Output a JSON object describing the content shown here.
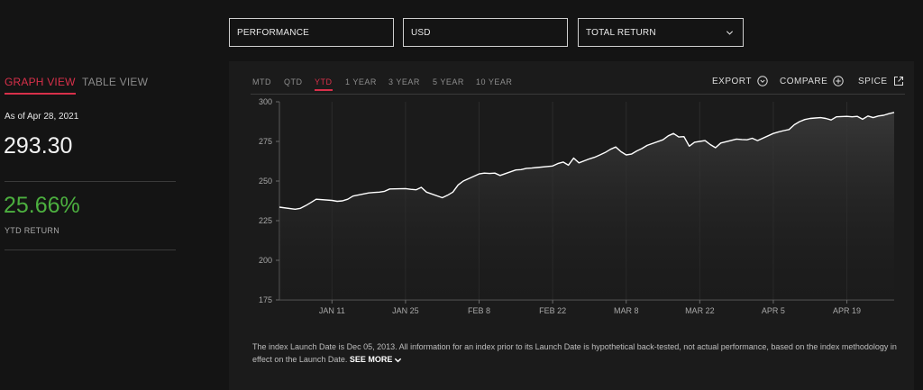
{
  "filters": {
    "performance": "PERFORMANCE",
    "currency": "USD",
    "return_type": "TOTAL RETURN",
    "return_type_icon": "chevron-down-icon"
  },
  "views": {
    "graph": "GRAPH VIEW",
    "table": "TABLE VIEW",
    "active": "graph"
  },
  "summary": {
    "as_of": "As of Apr 28, 2021",
    "value": "293.30",
    "ytd_value": "25.66%",
    "ytd_label": "YTD RETURN"
  },
  "periods": {
    "items": [
      "MTD",
      "QTD",
      "YTD",
      "1 YEAR",
      "3 YEAR",
      "5 YEAR",
      "10 YEAR"
    ],
    "active": "YTD"
  },
  "actions": {
    "export": "EXPORT",
    "compare": "COMPARE",
    "spice": "SPICE",
    "export_icon": "chevron-circle-down-icon",
    "compare_icon": "plus-circle-icon",
    "spice_icon": "external-link-icon"
  },
  "colors": {
    "accent": "#d8304a",
    "positive": "#4caf3f",
    "line": "#ffffff",
    "background": "#141414",
    "panel": "#1b1b1b"
  },
  "chart_data": {
    "type": "area",
    "ylim": [
      175,
      300
    ],
    "yticks": [
      175,
      200,
      225,
      250,
      275,
      300
    ],
    "xlim": [
      "2021-01-01",
      "2021-04-28"
    ],
    "xticks": [
      {
        "date": "2021-01-11",
        "label": "JAN 11"
      },
      {
        "date": "2021-01-25",
        "label": "JAN 25"
      },
      {
        "date": "2021-02-08",
        "label": "FEB 8"
      },
      {
        "date": "2021-02-22",
        "label": "FEB 22"
      },
      {
        "date": "2021-03-08",
        "label": "MAR 8"
      },
      {
        "date": "2021-03-22",
        "label": "MAR 22"
      },
      {
        "date": "2021-04-05",
        "label": "APR 5"
      },
      {
        "date": "2021-04-19",
        "label": "APR 19"
      }
    ],
    "grid": "vertical",
    "series": [
      {
        "points": [
          [
            "2021-01-01",
            233.5
          ],
          [
            "2021-01-04",
            232.2
          ],
          [
            "2021-01-05",
            232.8
          ],
          [
            "2021-01-06",
            234.5
          ],
          [
            "2021-01-07",
            236.5
          ],
          [
            "2021-01-08",
            238.5
          ],
          [
            "2021-01-11",
            237.8
          ],
          [
            "2021-01-12",
            237.2
          ],
          [
            "2021-01-13",
            237.5
          ],
          [
            "2021-01-14",
            238.5
          ],
          [
            "2021-01-15",
            240.5
          ],
          [
            "2021-01-18",
            242.5
          ],
          [
            "2021-01-19",
            242.8
          ],
          [
            "2021-01-20",
            243
          ],
          [
            "2021-01-21",
            243.5
          ],
          [
            "2021-01-22",
            245
          ],
          [
            "2021-01-25",
            245.2
          ],
          [
            "2021-01-26",
            244.8
          ],
          [
            "2021-01-27",
            244.5
          ],
          [
            "2021-01-28",
            246
          ],
          [
            "2021-01-29",
            243
          ],
          [
            "2021-02-01",
            239.5
          ],
          [
            "2021-02-02",
            241
          ],
          [
            "2021-02-03",
            243
          ],
          [
            "2021-02-04",
            247.5
          ],
          [
            "2021-02-05",
            250
          ],
          [
            "2021-02-08",
            254.5
          ],
          [
            "2021-02-09",
            255
          ],
          [
            "2021-02-10",
            254.8
          ],
          [
            "2021-02-11",
            255
          ],
          [
            "2021-02-12",
            253.5
          ],
          [
            "2021-02-15",
            257
          ],
          [
            "2021-02-16",
            257.2
          ],
          [
            "2021-02-17",
            258
          ],
          [
            "2021-02-18",
            258.2
          ],
          [
            "2021-02-19",
            258.5
          ],
          [
            "2021-02-22",
            259.5
          ],
          [
            "2021-02-23",
            261
          ],
          [
            "2021-02-24",
            262
          ],
          [
            "2021-02-25",
            260
          ],
          [
            "2021-02-26",
            264.5
          ],
          [
            "2021-02-27",
            261.5
          ],
          [
            "2021-03-01",
            264
          ],
          [
            "2021-03-02",
            265
          ],
          [
            "2021-03-03",
            266.5
          ],
          [
            "2021-03-04",
            268
          ],
          [
            "2021-03-05",
            270
          ],
          [
            "2021-03-06",
            271.5
          ],
          [
            "2021-03-07",
            268.5
          ],
          [
            "2021-03-08",
            266.5
          ],
          [
            "2021-03-09",
            267
          ],
          [
            "2021-03-10",
            269
          ],
          [
            "2021-03-11",
            270.5
          ],
          [
            "2021-03-12",
            272.5
          ],
          [
            "2021-03-15",
            276
          ],
          [
            "2021-03-16",
            278.5
          ],
          [
            "2021-03-17",
            280
          ],
          [
            "2021-03-18",
            277.8
          ],
          [
            "2021-03-19",
            278
          ],
          [
            "2021-03-20",
            272
          ],
          [
            "2021-03-21",
            274.5
          ],
          [
            "2021-03-22",
            275
          ],
          [
            "2021-03-23",
            275.5
          ],
          [
            "2021-03-24",
            273
          ],
          [
            "2021-03-25",
            271
          ],
          [
            "2021-03-26",
            274
          ],
          [
            "2021-03-29",
            276.5
          ],
          [
            "2021-03-30",
            276.2
          ],
          [
            "2021-03-31",
            276
          ],
          [
            "2021-04-01",
            277
          ],
          [
            "2021-04-02",
            275.5
          ],
          [
            "2021-04-05",
            280
          ],
          [
            "2021-04-06",
            281
          ],
          [
            "2021-04-07",
            281.8
          ],
          [
            "2021-04-08",
            282.5
          ],
          [
            "2021-04-09",
            285.5
          ],
          [
            "2021-04-10",
            287.5
          ],
          [
            "2021-04-11",
            288.8
          ],
          [
            "2021-04-12",
            289.5
          ],
          [
            "2021-04-13",
            289.8
          ],
          [
            "2021-04-14",
            290
          ],
          [
            "2021-04-15",
            289.5
          ],
          [
            "2021-04-16",
            288.5
          ],
          [
            "2021-04-17",
            290.5
          ],
          [
            "2021-04-19",
            290.8
          ],
          [
            "2021-04-20",
            290.5
          ],
          [
            "2021-04-21",
            290.8
          ],
          [
            "2021-04-22",
            289
          ],
          [
            "2021-04-23",
            291
          ],
          [
            "2021-04-24",
            290
          ],
          [
            "2021-04-25",
            291
          ],
          [
            "2021-04-26",
            291.5
          ],
          [
            "2021-04-27",
            292.5
          ],
          [
            "2021-04-28",
            293.3
          ]
        ]
      }
    ]
  },
  "disclaimer": {
    "text": "The index Launch Date is Dec 05, 2013. All information for an index prior to its Launch Date is hypothetical back-tested, not actual performance, based on the index methodology in effect on the Launch Date. ",
    "see_more": "SEE MORE"
  }
}
